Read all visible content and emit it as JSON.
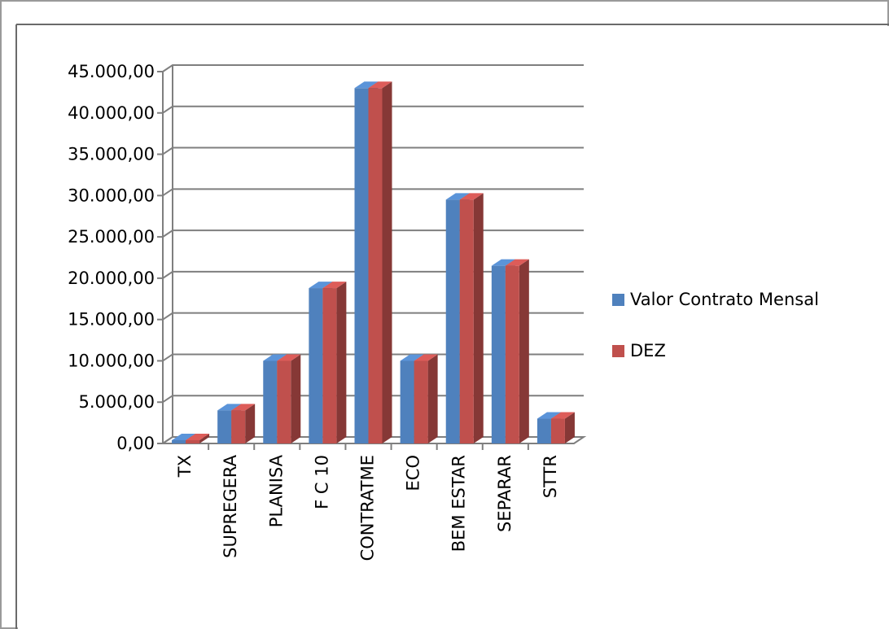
{
  "chart_data": {
    "type": "bar",
    "title": "",
    "xlabel": "",
    "ylabel": "",
    "ylim": [
      0,
      45000
    ],
    "yticks": [
      "0,00",
      "5.000,00",
      "10.000,00",
      "15.000,00",
      "20.000,00",
      "25.000,00",
      "30.000,00",
      "35.000,00",
      "40.000,00",
      "45.000,00"
    ],
    "categories": [
      "TX",
      "SUPREGERA",
      "PLANISA",
      "F C 10",
      "CONTRATME",
      "ECO",
      "BEM ESTAR",
      "SEPARAR",
      "STTR"
    ],
    "series": [
      {
        "name": "Valor Contrato Mensal",
        "color": "#4F81BD",
        "values": [
          400,
          4000,
          10000,
          18800,
          43000,
          10000,
          29500,
          21500,
          3000
        ]
      },
      {
        "name": "DEZ",
        "color": "#C0504D",
        "values": [
          400,
          4000,
          10000,
          18800,
          43000,
          10000,
          29500,
          21500,
          3000
        ]
      }
    ],
    "grid": true,
    "legend_position": "right"
  }
}
